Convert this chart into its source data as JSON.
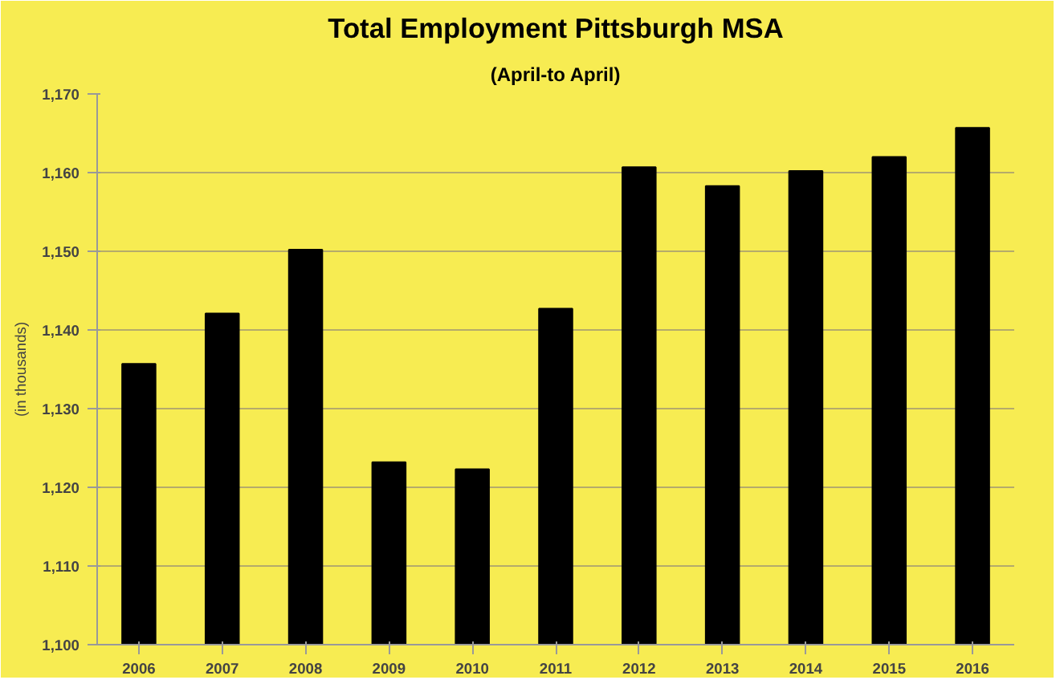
{
  "chart_data": {
    "type": "bar",
    "title": "Total Employment Pittsburgh MSA",
    "subtitle": "(April-to April)",
    "ylabel": "(in thousands)",
    "categories": [
      "2006",
      "2007",
      "2008",
      "2009",
      "2010",
      "2011",
      "2012",
      "2013",
      "2014",
      "2015",
      "2016"
    ],
    "values": [
      1135.7,
      1142.1,
      1150.2,
      1123.2,
      1122.3,
      1142.7,
      1160.7,
      1158.3,
      1160.2,
      1162.0,
      1165.7
    ],
    "color": "#000000",
    "ylim": [
      1100,
      1170
    ],
    "yticks": [
      {
        "value": 1100,
        "label": "1,100"
      },
      {
        "value": 1110,
        "label": "1,110"
      },
      {
        "value": 1120,
        "label": "1,120"
      },
      {
        "value": 1130,
        "label": "1,130"
      },
      {
        "value": 1140,
        "label": "1,140"
      },
      {
        "value": 1150,
        "label": "1,150"
      },
      {
        "value": 1160,
        "label": "1,160"
      },
      {
        "value": 1170,
        "label": "1,170"
      }
    ],
    "grid": "y"
  }
}
